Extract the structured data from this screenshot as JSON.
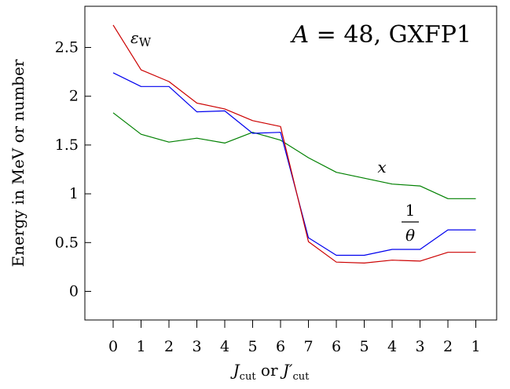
{
  "chart_data": {
    "type": "line",
    "title": "A = 48, GXFP1",
    "title_parts": {
      "var": "A",
      "rest": " = 48, GXFP1"
    },
    "xlabel": "",
    "xlabel_parts": {
      "j": "J",
      "sub": "cut",
      "mid": " or ",
      "jp": "J′",
      "sub2": "cut"
    },
    "ylabel": "Energy in MeV or number",
    "ylim": [
      -0.3,
      2.85
    ],
    "categories": [
      "0",
      "1",
      "2",
      "3",
      "4",
      "5",
      "6",
      "7",
      "6",
      "5",
      "4",
      "3",
      "2",
      "1"
    ],
    "yticks": [
      "0",
      "0.5",
      "1",
      "1.5",
      "2",
      "2.5"
    ],
    "ytick_values": [
      0,
      0.5,
      1,
      1.5,
      2,
      2.5
    ],
    "series": [
      {
        "name": "εW",
        "color": "#cc0000",
        "values": [
          2.73,
          2.27,
          2.15,
          1.93,
          1.87,
          1.75,
          1.69,
          0.51,
          0.3,
          0.29,
          0.32,
          0.31,
          0.4,
          0.4
        ]
      },
      {
        "name": "1/θ",
        "color": "#0000ee",
        "values": [
          2.24,
          2.1,
          2.1,
          1.84,
          1.85,
          1.62,
          1.63,
          0.55,
          0.37,
          0.37,
          0.43,
          0.43,
          0.63,
          0.63
        ]
      },
      {
        "name": "x",
        "color": "#008000",
        "values": [
          1.83,
          1.61,
          1.53,
          1.57,
          1.52,
          1.63,
          1.55,
          1.37,
          1.22,
          1.16,
          1.1,
          1.08,
          0.95,
          0.95
        ]
      }
    ],
    "annotations": {
      "eps_main": "ε",
      "eps_sub": "W",
      "theta_num": "1",
      "theta_den": "θ",
      "x_label": "x"
    },
    "grid": false,
    "legend": "none (inline labels)"
  }
}
